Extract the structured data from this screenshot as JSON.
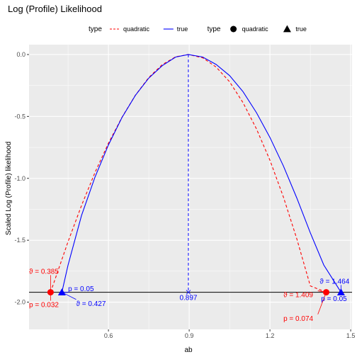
{
  "chart_data": {
    "type": "line",
    "title": "Log (Profile) Likelihood",
    "xlabel": "ab",
    "ylabel": "Scaled Log (Profile) likelihood",
    "xlim": [
      0.305,
      1.505
    ],
    "ylim": [
      -2.22,
      0.08
    ],
    "x_ticks": [
      0.6,
      0.9,
      1.2,
      1.5
    ],
    "x_tick_labels": [
      "0.6",
      "0.9",
      "1.2",
      "1.5"
    ],
    "y_ticks": [
      0.0,
      -0.5,
      -1.0,
      -1.5,
      -2.0
    ],
    "y_tick_labels": [
      "0.0",
      "-0.5",
      "-1.0",
      "-1.5",
      "-2.0"
    ],
    "grid": true,
    "legend": {
      "position": "top",
      "groups": [
        {
          "title": "type",
          "entries": [
            {
              "label": "quadratic",
              "key": "dashed",
              "color": "#ff0000"
            },
            {
              "label": "true",
              "key": "solid",
              "color": "#0000ff"
            }
          ]
        },
        {
          "title": "type",
          "entries": [
            {
              "label": "quadratic",
              "key": "circle",
              "color": "#000000"
            },
            {
              "label": "true",
              "key": "triangle",
              "color": "#000000"
            }
          ]
        }
      ]
    },
    "threshold_y": -1.92,
    "vline": {
      "x": 0.897,
      "y_from": 0.0,
      "y_to": -1.92,
      "label": "0.897",
      "color": "#0000ff"
    },
    "series": [
      {
        "name": "quadratic",
        "style": "dashed",
        "color": "#ff0000",
        "x": [
          0.385,
          0.45,
          0.5,
          0.55,
          0.6,
          0.65,
          0.7,
          0.75,
          0.8,
          0.85,
          0.897,
          0.95,
          1.0,
          1.05,
          1.1,
          1.15,
          1.2,
          1.25,
          1.3,
          1.35,
          1.409
        ],
        "y": [
          -1.92,
          -1.511,
          -1.219,
          -0.953,
          -0.716,
          -0.508,
          -0.329,
          -0.185,
          -0.081,
          -0.018,
          0.0,
          -0.026,
          -0.101,
          -0.22,
          -0.389,
          -0.601,
          -0.854,
          -1.151,
          -1.49,
          -1.869,
          -1.92
        ]
      },
      {
        "name": "true",
        "style": "solid",
        "color": "#0000ff",
        "x": [
          0.427,
          0.45,
          0.5,
          0.55,
          0.6,
          0.65,
          0.7,
          0.75,
          0.8,
          0.85,
          0.897,
          0.95,
          1.0,
          1.05,
          1.1,
          1.15,
          1.2,
          1.25,
          1.3,
          1.35,
          1.4,
          1.464
        ],
        "y": [
          -1.92,
          -1.7,
          -1.3,
          -0.99,
          -0.73,
          -0.51,
          -0.33,
          -0.19,
          -0.09,
          -0.02,
          0.0,
          -0.02,
          -0.08,
          -0.17,
          -0.3,
          -0.47,
          -0.67,
          -0.9,
          -1.16,
          -1.44,
          -1.7,
          -1.92
        ]
      }
    ],
    "points": [
      {
        "name": "quadratic",
        "shape": "circle",
        "color": "#ff0000",
        "x": 0.385,
        "y": -1.92
      },
      {
        "name": "quadratic",
        "shape": "circle",
        "color": "#ff0000",
        "x": 1.409,
        "y": -1.92
      },
      {
        "name": "true",
        "shape": "triangle",
        "color": "#0000ff",
        "x": 0.427,
        "y": -1.92
      },
      {
        "name": "true",
        "shape": "triangle",
        "color": "#0000ff",
        "x": 1.464,
        "y": -1.92
      }
    ],
    "annotations": [
      {
        "text": "ϑ = 0.385",
        "color": "#ff0000",
        "x": 0.305,
        "y": -1.77,
        "anchor_x": 0.385,
        "anchor_y": -1.92
      },
      {
        "text": "p = 0.032",
        "color": "#ff0000",
        "x": 0.305,
        "y": -2.04,
        "anchor_x": 0.385,
        "anchor_y": -1.92
      },
      {
        "text": "p = 0.05",
        "color": "#0000ff",
        "x": 0.45,
        "y": -1.91,
        "anchor_x": 0.427,
        "anchor_y": -1.92
      },
      {
        "text": "ϑ = 0.427",
        "color": "#0000ff",
        "x": 0.48,
        "y": -2.03,
        "anchor_x": 0.427,
        "anchor_y": -1.92
      },
      {
        "text": "ϑ = 1.464",
        "color": "#0000ff",
        "x": 1.385,
        "y": -1.85,
        "anchor_x": 1.464,
        "anchor_y": -1.92
      },
      {
        "text": "p = 0.05",
        "color": "#0000ff",
        "x": 1.39,
        "y": -1.99,
        "anchor_x": 1.464,
        "anchor_y": -1.92
      },
      {
        "text": "ϑ = 1.409",
        "color": "#ff0000",
        "x": 1.25,
        "y": -1.96,
        "anchor_x": 1.409,
        "anchor_y": -1.92
      },
      {
        "text": "p = 0.074",
        "color": "#ff0000",
        "x": 1.25,
        "y": -2.15,
        "anchor_x": 1.409,
        "anchor_y": -1.92
      }
    ]
  }
}
